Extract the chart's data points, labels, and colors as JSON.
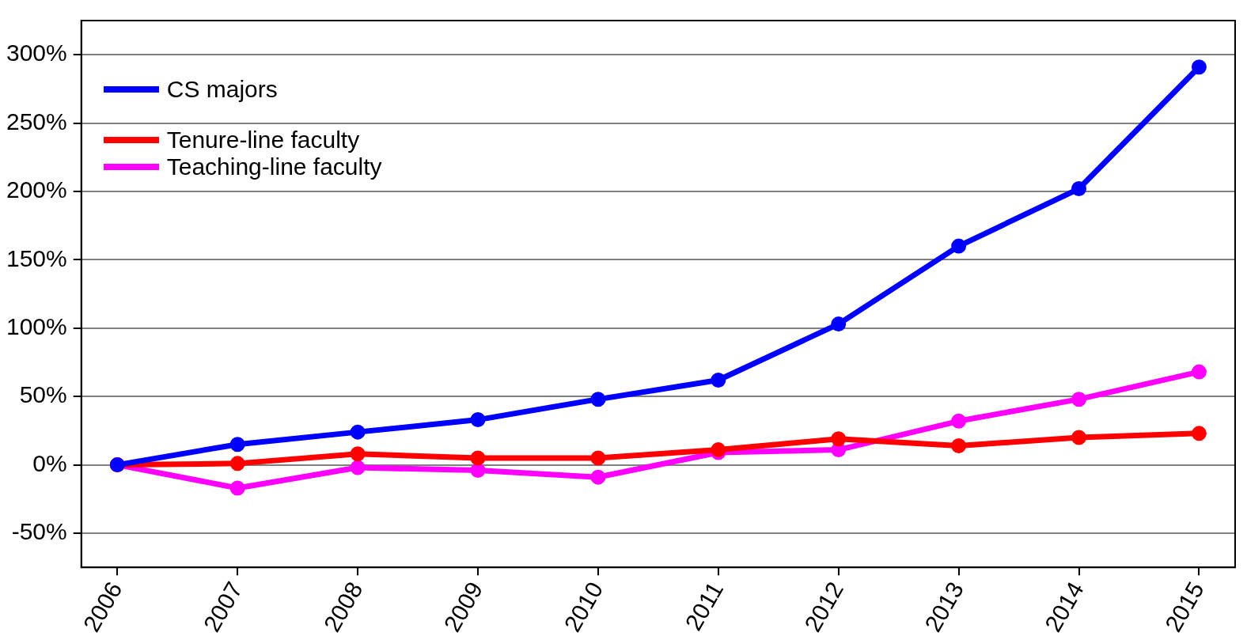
{
  "chart_data": {
    "type": "line",
    "x": [
      2006,
      2007,
      2008,
      2009,
      2010,
      2011,
      2012,
      2013,
      2014,
      2015
    ],
    "series": [
      {
        "name": "CS majors",
        "color": "#0000ff",
        "values": [
          0,
          15,
          24,
          33,
          48,
          62,
          103,
          160,
          202,
          291
        ]
      },
      {
        "name": "Tenure-line faculty",
        "color": "#ff0000",
        "values": [
          0,
          1,
          8,
          5,
          5,
          11,
          19,
          14,
          20,
          23
        ]
      },
      {
        "name": "Teaching-line faculty",
        "color": "#ff00ff",
        "values": [
          0,
          -17,
          -2,
          -4,
          -9,
          9,
          11,
          32,
          48,
          68
        ]
      }
    ],
    "xlim": [
      2005.7,
      2015.3
    ],
    "xticks": [
      2006,
      2007,
      2008,
      2009,
      2010,
      2011,
      2012,
      2013,
      2014,
      2015
    ],
    "ylim": [
      -75,
      325
    ],
    "yticks": [
      {
        "value": -50,
        "label": "-50%"
      },
      {
        "value": 0,
        "label": "0%"
      },
      {
        "value": 50,
        "label": "50%"
      },
      {
        "value": 100,
        "label": "100%"
      },
      {
        "value": 150,
        "label": "150%"
      },
      {
        "value": 200,
        "label": "200%"
      },
      {
        "value": 250,
        "label": "250%"
      },
      {
        "value": 300,
        "label": "300%"
      }
    ],
    "grid": "y",
    "legend": "top left",
    "marker": "circle",
    "line_style": "solid"
  }
}
